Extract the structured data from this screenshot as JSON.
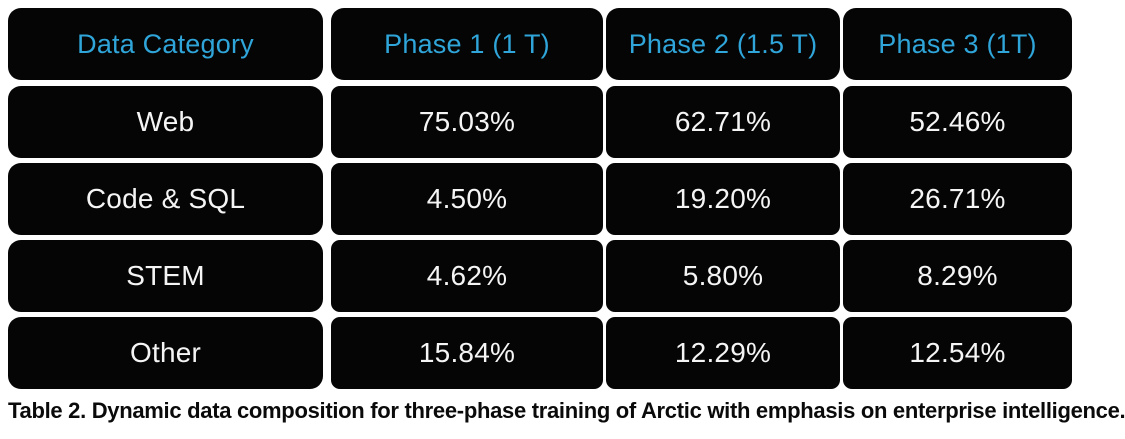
{
  "table": {
    "columns": [
      "Data Category",
      "Phase 1 (1 T)",
      "Phase 2 (1.5 T)",
      "Phase 3 (1T)"
    ],
    "rows": [
      {
        "category": "Web",
        "values": [
          "75.03%",
          "62.71%",
          "52.46%"
        ]
      },
      {
        "category": "Code & SQL",
        "values": [
          "4.50%",
          "19.20%",
          "26.71%"
        ]
      },
      {
        "category": "STEM",
        "values": [
          "4.62%",
          "5.80%",
          "8.29%"
        ]
      },
      {
        "category": "Other",
        "values": [
          "15.84%",
          "12.29%",
          "12.54%"
        ]
      }
    ]
  },
  "caption": "Table 2. Dynamic data composition for three-phase training of Arctic with emphasis on enterprise intelligence.",
  "colors": {
    "header_text": "#2fa5d9",
    "cell_background": "#050505",
    "body_text": "#f5f5f5",
    "page_background": "#ffffff"
  },
  "chart_data": {
    "type": "table",
    "title": "Dynamic data composition for three-phase training of Arctic",
    "categories": [
      "Web",
      "Code & SQL",
      "STEM",
      "Other"
    ],
    "series": [
      {
        "name": "Phase 1 (1 T)",
        "values": [
          75.03,
          4.5,
          4.62,
          15.84
        ]
      },
      {
        "name": "Phase 2 (1.5 T)",
        "values": [
          62.71,
          19.2,
          5.8,
          12.29
        ]
      },
      {
        "name": "Phase 3 (1T)",
        "values": [
          52.46,
          26.71,
          8.29,
          12.54
        ]
      }
    ],
    "unit": "%"
  }
}
